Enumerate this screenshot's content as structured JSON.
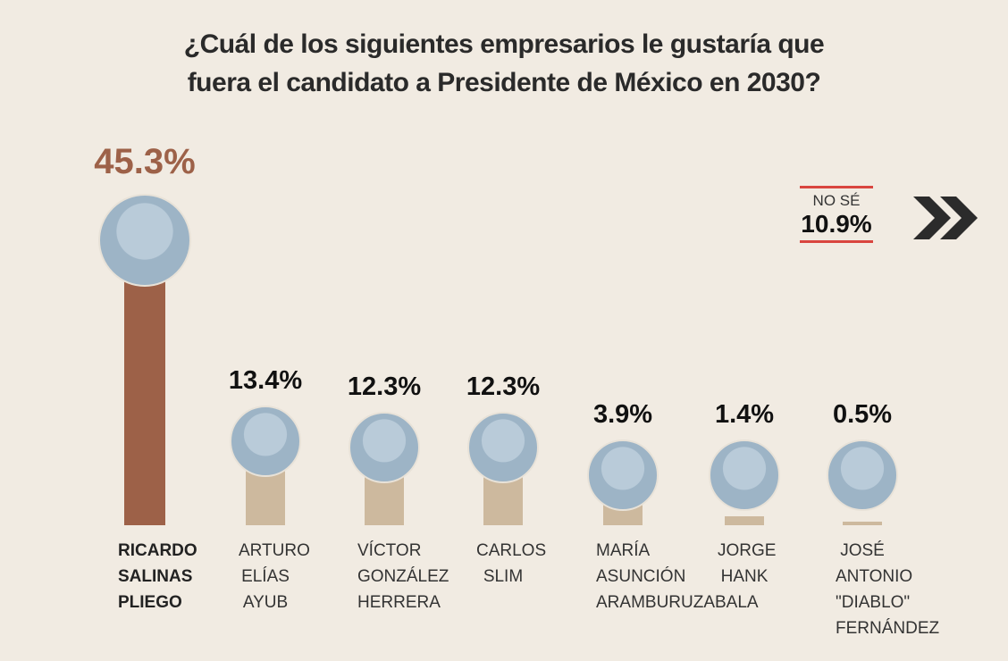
{
  "chart_data": {
    "type": "bar",
    "title": "¿Cuál de los siguientes empresarios le gustaría que fuera el candidato a Presidente de México en 2030?",
    "categories": [
      "RICARDO SALINAS PLIEGO",
      "ARTURO ELÍAS AYUB",
      "VÍCTOR GONZÁLEZ HERRERA",
      "CARLOS SLIM",
      "MARÍA ASUNCIÓN ARAMBURUZABALA",
      "JORGE HANK",
      "JOSÉ ANTONIO \"DIABLO\" FERNÁNDEZ"
    ],
    "values": [
      45.3,
      13.4,
      12.3,
      12.3,
      3.9,
      1.4,
      0.5
    ],
    "value_labels": [
      "45.3%",
      "13.4%",
      "12.3%",
      "12.3%",
      "3.9%",
      "1.4%",
      "0.5%"
    ],
    "colors": [
      "#9d6148",
      "#cdb99e",
      "#cdb99e",
      "#cdb99e",
      "#cdb99e",
      "#cdb99e",
      "#cdb99e"
    ],
    "other": {
      "label": "NO SÉ",
      "value": 10.9,
      "value_label": "10.9%"
    }
  }
}
